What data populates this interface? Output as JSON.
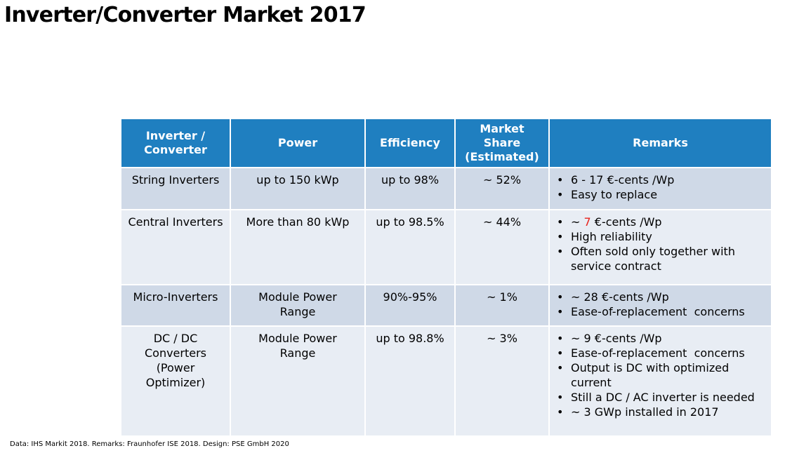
{
  "title": "Inverter/Converter Market 2017",
  "colors": {
    "header_bg": "#1f7fc0",
    "row_odd": "#cfd9e7",
    "row_even": "#e8edf4",
    "highlight": "#e8221b"
  },
  "table": {
    "headers": [
      "Inverter / Converter",
      "Power",
      "Efficiency",
      "Market Share (Estimated)",
      "Remarks"
    ],
    "rows": [
      {
        "type": "String Inverters",
        "power": "up to 150 kWp",
        "efficiency": "up to 98%",
        "share": "~ 52%",
        "remarks": [
          "6 - 17 €-cents /Wp",
          "Easy to replace"
        ]
      },
      {
        "type": "Central Inverters",
        "power": "More than 80 kWp",
        "efficiency": "up to 98.5%",
        "share": "~ 44%",
        "remarks_first": {
          "pre": "~ ",
          "highlight": "7",
          "post": " €-cents /Wp"
        },
        "remarks": [
          "High reliability",
          "Often sold only together with service contract"
        ]
      },
      {
        "type": "Micro-Inverters",
        "power": "Module Power Range",
        "efficiency": "90%-95%",
        "share": "~ 1%",
        "remarks": [
          "~ 28 €-cents /Wp",
          "Ease-of-replacement  concerns"
        ]
      },
      {
        "type": "DC / DC Converters (Power Optimizer)",
        "power": "Module Power Range",
        "efficiency": "up to 98.8%",
        "share": "~ 3%",
        "remarks": [
          "~ 9 €-cents /Wp",
          "Ease-of-replacement  concerns",
          "Output is DC with optimized current",
          "Still a DC / AC inverter is needed",
          "~ 3 GWp installed in 2017"
        ]
      }
    ]
  },
  "footnote": "Data: IHS Markit 2018. Remarks: Fraunhofer ISE 2018. Design: PSE GmbH 2020"
}
